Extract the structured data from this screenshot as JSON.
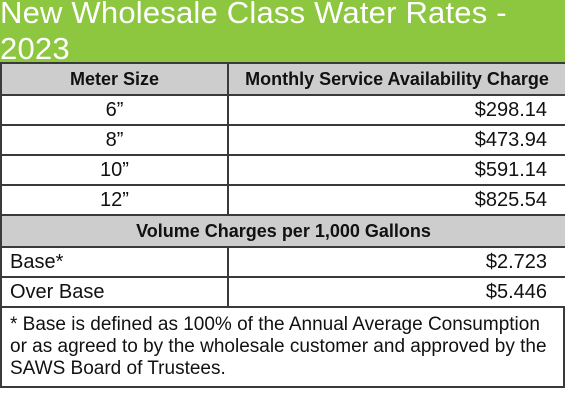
{
  "title": "New Wholesale Class Water Rates - 2023",
  "headers": {
    "meter_size": "Meter Size",
    "monthly_charge": "Monthly Service Availability Charge"
  },
  "meter_rows": [
    {
      "size": "6”",
      "charge": "$298.14"
    },
    {
      "size": "8”",
      "charge": "$473.94"
    },
    {
      "size": "10”",
      "charge": "$591.14"
    },
    {
      "size": "12”",
      "charge": "$825.54"
    }
  ],
  "volume_section": {
    "header": "Volume Charges per 1,000 Gallons",
    "rows": [
      {
        "label": "Base*",
        "charge": "$2.723"
      },
      {
        "label": "Over Base",
        "charge": "$5.446"
      }
    ]
  },
  "footnote": "* Base is defined as 100% of the Annual Average Consumption or as agreed to by the wholesale customer and approved by the SAWS Board of Trustees.",
  "colors": {
    "title_bg": "#8dc63f",
    "header_bg": "#cdcdcd",
    "border": "#3a3a3a"
  }
}
